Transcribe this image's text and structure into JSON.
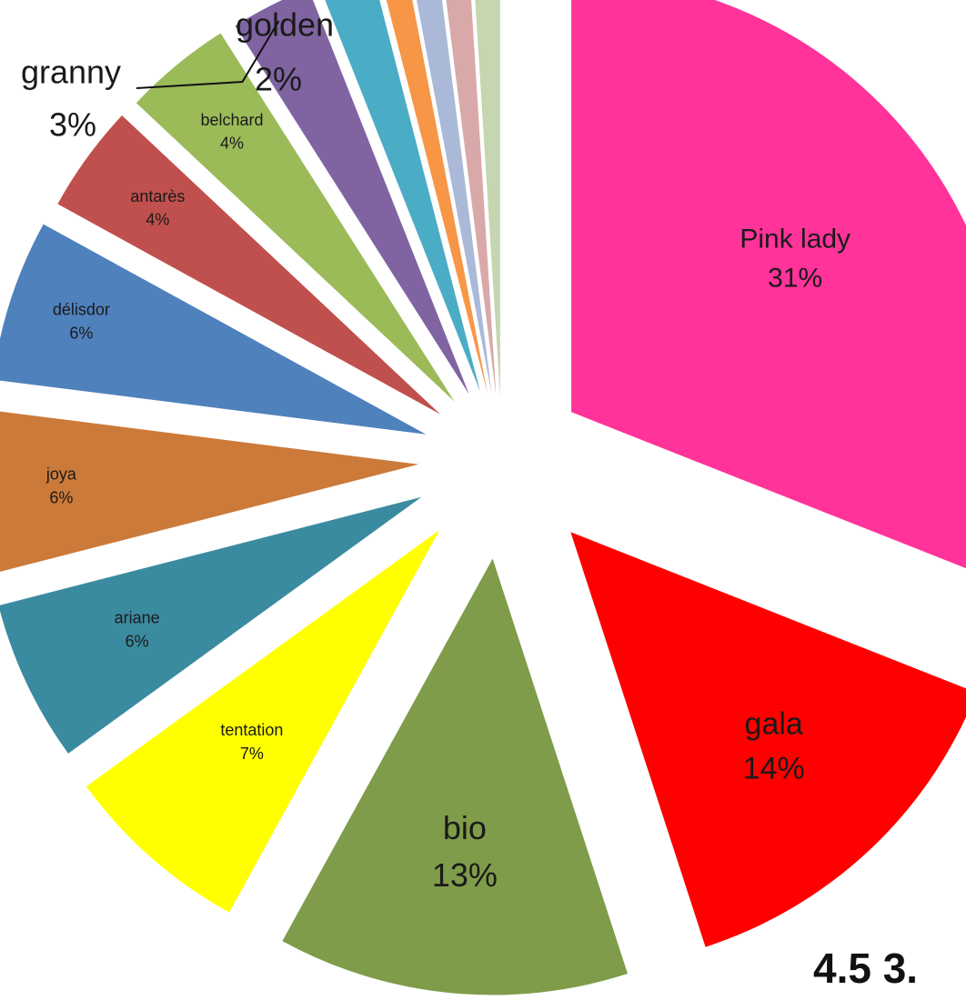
{
  "chart_data": {
    "type": "pie",
    "style": "exploded",
    "legend": "none",
    "slices": [
      {
        "label": "Pink lady",
        "value": 31,
        "percent_label": "31%",
        "color": "#FF3399"
      },
      {
        "label": "gala",
        "value": 14,
        "percent_label": "14%",
        "color": "#FF0000"
      },
      {
        "label": "bio",
        "value": 13,
        "percent_label": "13%",
        "color": "#7F9C4A"
      },
      {
        "label": "tentation",
        "value": 7,
        "percent_label": "7%",
        "color": "#FFFF00"
      },
      {
        "label": "ariane",
        "value": 6,
        "percent_label": "6%",
        "color": "#3B8BA0"
      },
      {
        "label": "joya",
        "value": 6,
        "percent_label": "6%",
        "color": "#CC7A3A"
      },
      {
        "label": "délisdor",
        "value": 6,
        "percent_label": "6%",
        "color": "#4F81BD"
      },
      {
        "label": "antarès",
        "value": 4,
        "percent_label": "4%",
        "color": "#C0504D"
      },
      {
        "label": "belchard",
        "value": 4,
        "percent_label": "4%",
        "color": "#9BBB59"
      },
      {
        "label": "granny",
        "value": 3,
        "percent_label": "3%",
        "color": "#8064A2"
      },
      {
        "label": "golden",
        "value": 2,
        "percent_label": "2%",
        "color": "#4BACC6"
      },
      {
        "label": "",
        "value": 1,
        "percent_label": "",
        "color": "#F79646"
      },
      {
        "label": "",
        "value": 1,
        "percent_label": "",
        "color": "#AAB9D8"
      },
      {
        "label": "",
        "value": 1,
        "percent_label": "",
        "color": "#D9A9A9"
      },
      {
        "label": "",
        "value": 1,
        "percent_label": "",
        "color": "#C5D6B0"
      }
    ]
  },
  "corner_text": "4.5 3."
}
